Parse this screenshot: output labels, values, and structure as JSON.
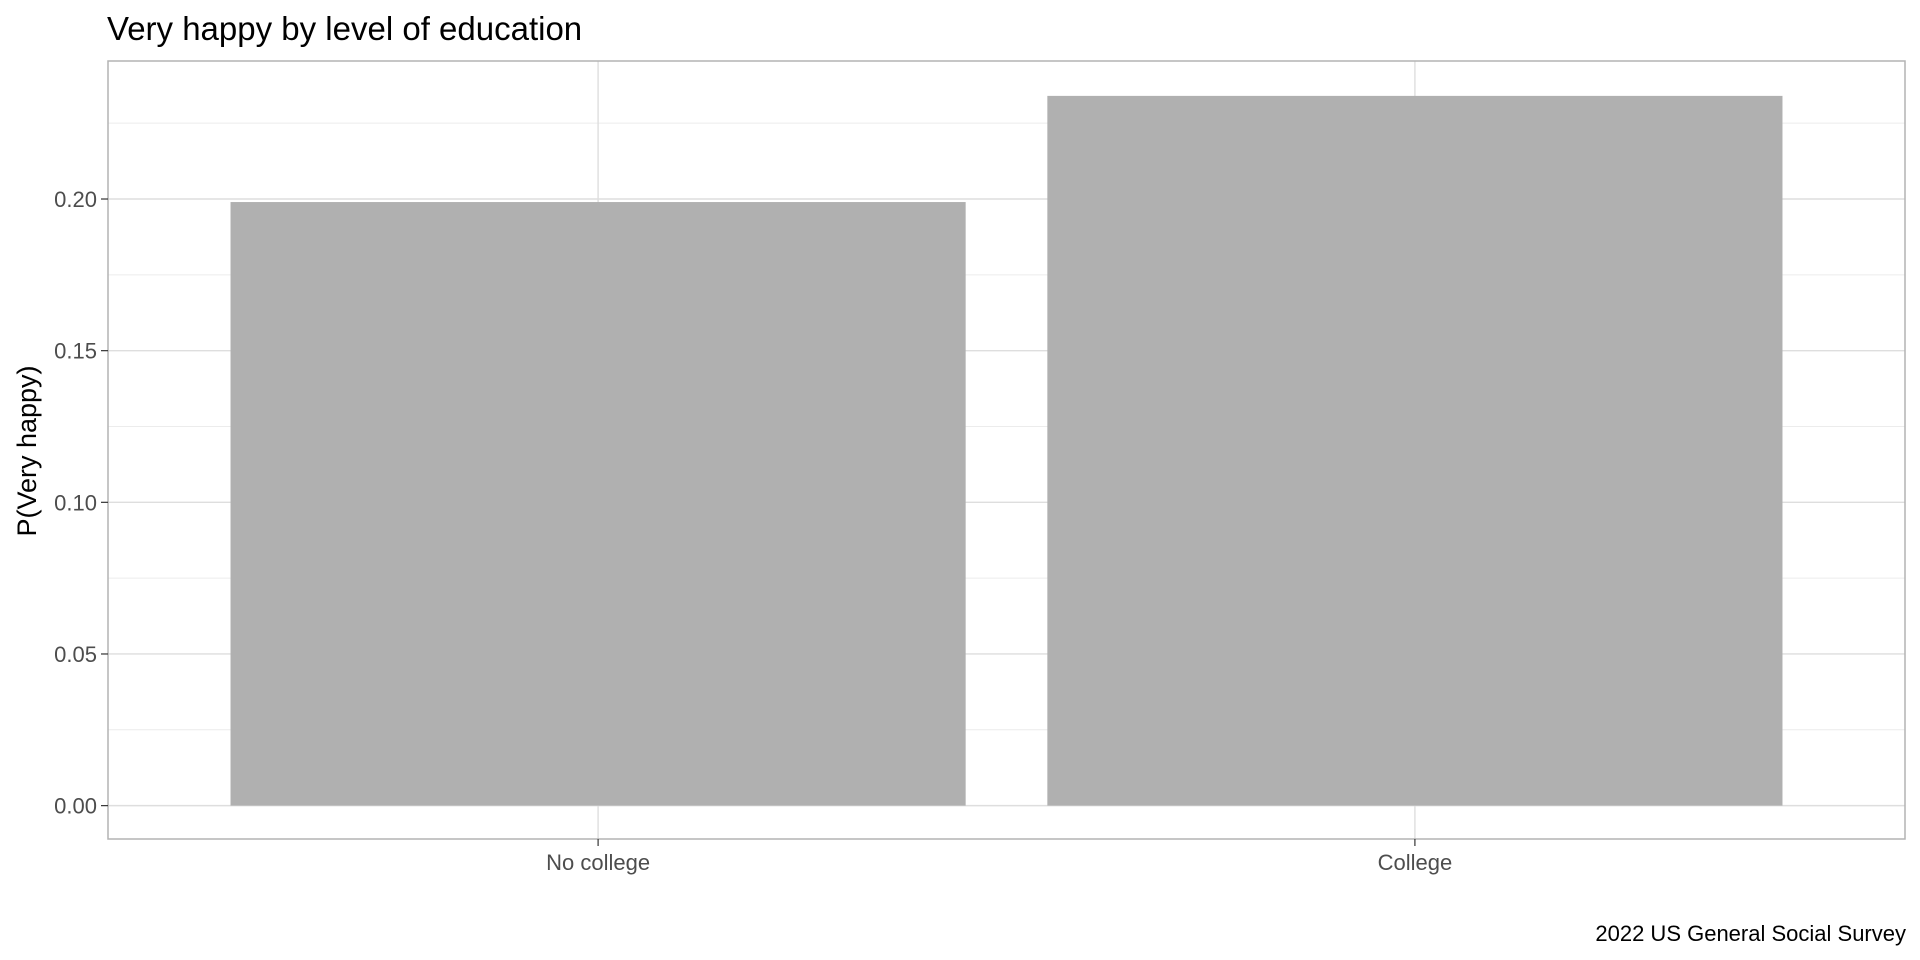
{
  "chart_data": {
    "type": "bar",
    "title": "Very happy by level of education",
    "xlabel": "",
    "ylabel": "P(Very happy)",
    "caption": "2022 US General Social Survey",
    "categories": [
      "No college",
      "College"
    ],
    "values": [
      0.199,
      0.234
    ],
    "ylim": [
      -0.011,
      0.2455
    ],
    "y_ticks": [
      0.0,
      0.05,
      0.1,
      0.15,
      0.2
    ],
    "y_tick_labels": [
      "0.00",
      "0.05",
      "0.10",
      "0.15",
      "0.20"
    ],
    "grid": true,
    "theme": "light",
    "bar_color": "#b0b0b0",
    "grid_major_color": "#dedede",
    "grid_minor_color": "#ececec",
    "panel_border_color": "#b3b3b3"
  }
}
